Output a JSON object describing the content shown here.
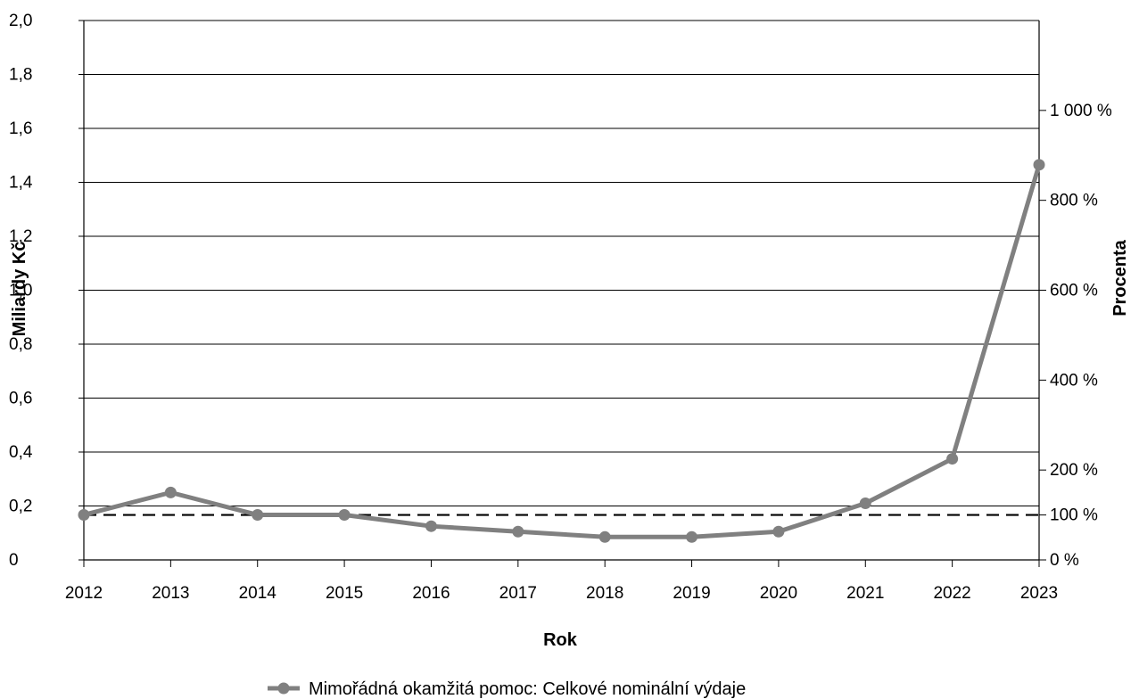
{
  "chart_data": {
    "type": "line",
    "title": "",
    "xlabel": "Rok",
    "ylabel": "Miliardy Kč",
    "y2label": "Procenta",
    "x": [
      "2012",
      "2013",
      "2014",
      "2015",
      "2016",
      "2017",
      "2018",
      "2019",
      "2020",
      "2021",
      "2022",
      "2023"
    ],
    "ylim": [
      0,
      2.0
    ],
    "yticks": [
      {
        "value": 0,
        "label": "0"
      },
      {
        "value": 0.2,
        "label": "0,2"
      },
      {
        "value": 0.4,
        "label": "0,4"
      },
      {
        "value": 0.6,
        "label": "0,6"
      },
      {
        "value": 0.8,
        "label": "0,8"
      },
      {
        "value": 1.0,
        "label": "1,0"
      },
      {
        "value": 1.2,
        "label": "1,2"
      },
      {
        "value": 1.4,
        "label": "1,4"
      },
      {
        "value": 1.6,
        "label": "1,6"
      },
      {
        "value": 1.8,
        "label": "1,8"
      },
      {
        "value": 2.0,
        "label": "2,0"
      }
    ],
    "y2ticks": [
      {
        "value": 0,
        "label": "0 %"
      },
      {
        "value": 100,
        "label": "100 %"
      },
      {
        "value": 200,
        "label": "200 %"
      },
      {
        "value": 400,
        "label": "400 %"
      },
      {
        "value": 600,
        "label": "600 %"
      },
      {
        "value": 800,
        "label": "800 %"
      },
      {
        "value": 1000,
        "label": "1 000 %"
      }
    ],
    "y2_per_y": 600,
    "grid": true,
    "series": [
      {
        "name": "Mimořádná okamžitá pomoc: Celkové nominální výdaje",
        "color": "#808080",
        "values": [
          0.167,
          0.25,
          0.167,
          0.167,
          0.125,
          0.105,
          0.085,
          0.085,
          0.105,
          0.21,
          0.375,
          1.465
        ]
      }
    ],
    "reference_line": {
      "axis": "y2",
      "value": 100,
      "style": "dashed",
      "color": "#000000"
    },
    "legend_position": "bottom-center"
  }
}
